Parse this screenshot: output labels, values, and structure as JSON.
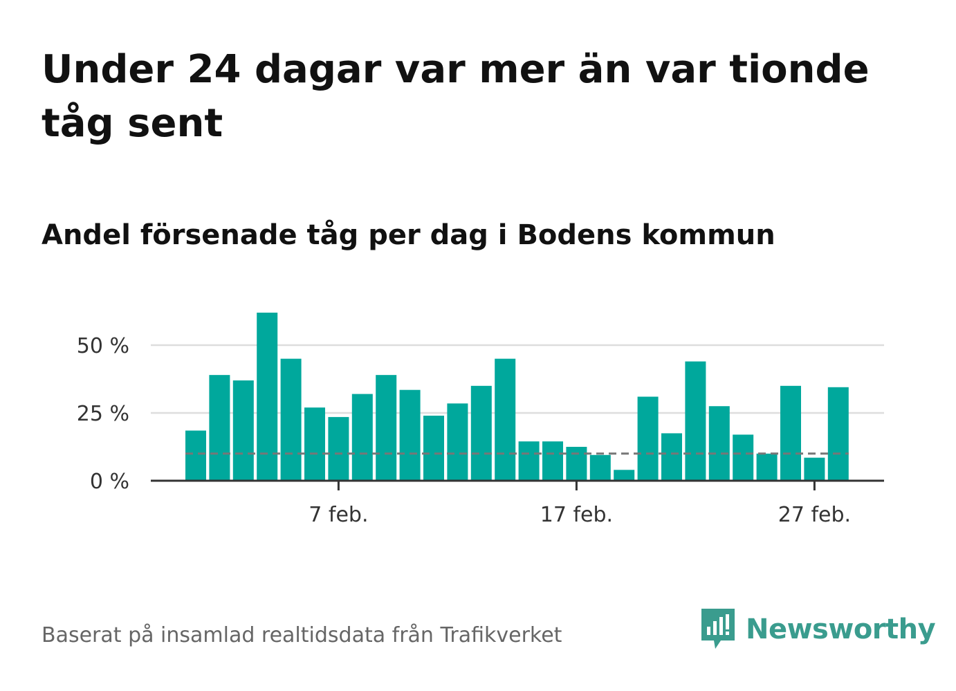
{
  "title": "Under 24 dagar var mer än var tionde tåg sent",
  "subtitle": "Andel försenade tåg per dag i Bodens kommun",
  "source": "Baserat på insamlad realtidsdata från Trafikverket",
  "brand": {
    "name": "Newsworthy",
    "icon": "newsworthy-logo-icon",
    "color": "#3a9c8e"
  },
  "colors": {
    "bar": "#00a89c",
    "grid": "#dddddd",
    "threshold": "#777777",
    "axis": "#333333"
  },
  "chart_data": {
    "type": "bar",
    "ylim": [
      0,
      62
    ],
    "y_ticks": [
      {
        "value": 0,
        "label": "0 %"
      },
      {
        "value": 25,
        "label": "25 %"
      },
      {
        "value": 50,
        "label": "50 %"
      }
    ],
    "x_ticks": [
      {
        "day": 7,
        "label": "7 feb."
      },
      {
        "day": 17,
        "label": "17 feb."
      },
      {
        "day": 27,
        "label": "27 feb."
      }
    ],
    "threshold": 10,
    "grid": true,
    "days": [
      1,
      2,
      3,
      4,
      5,
      6,
      7,
      8,
      9,
      10,
      11,
      12,
      13,
      14,
      15,
      16,
      17,
      18,
      19,
      20,
      21,
      22,
      23,
      24,
      25,
      26,
      27,
      28
    ],
    "values": [
      18.5,
      39,
      37,
      62,
      45,
      27,
      23.5,
      32,
      39,
      33.5,
      24,
      28.5,
      35,
      45,
      14.5,
      14.5,
      12.5,
      9.5,
      4,
      31,
      17.5,
      44,
      27.5,
      17,
      10,
      35,
      8.5,
      34.5
    ]
  }
}
